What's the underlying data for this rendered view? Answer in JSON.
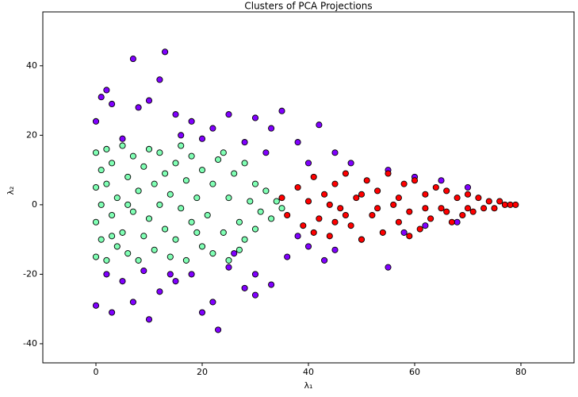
{
  "chart_data": {
    "type": "scatter",
    "title": "Clusters of PCA Projections",
    "xlabel": "λ₁",
    "ylabel": "λ₂",
    "xlim": [
      -10,
      90
    ],
    "ylim": [
      -45.5,
      55.5
    ],
    "xticks": [
      0,
      20,
      40,
      60,
      80
    ],
    "yticks": [
      -40,
      -20,
      0,
      20,
      40
    ],
    "edgecolor": "#000000",
    "series": [
      {
        "color": "#8000ff",
        "x": [
          7,
          13,
          12,
          10,
          2,
          1,
          3,
          8,
          15,
          18,
          22,
          25,
          30,
          33,
          35,
          38,
          42,
          45,
          48,
          55,
          60,
          65,
          70,
          28,
          20,
          5,
          0,
          16,
          32,
          40,
          10,
          23,
          20,
          3,
          0,
          7,
          12,
          15,
          18,
          25,
          28,
          30,
          33,
          36,
          40,
          45,
          50,
          55,
          58,
          62,
          68,
          2,
          5,
          22,
          14,
          38,
          43,
          30,
          9,
          26
        ],
        "y": [
          42,
          44,
          36,
          30,
          33,
          31,
          29,
          28,
          26,
          24,
          22,
          26,
          25,
          22,
          27,
          18,
          23,
          15,
          12,
          10,
          8,
          7,
          5,
          18,
          19,
          19,
          24,
          20,
          15,
          12,
          -33,
          -36,
          -31,
          -31,
          -29,
          -28,
          -25,
          -22,
          -20,
          -18,
          -24,
          -20,
          -23,
          -15,
          -12,
          -13,
          -10,
          -18,
          -8,
          -6,
          -5,
          -20,
          -22,
          -28,
          -20,
          -9,
          -16,
          -26,
          -19,
          -14
        ]
      },
      {
        "color": "#80ffb4",
        "x": [
          0,
          0,
          0,
          0,
          1,
          1,
          1,
          2,
          2,
          2,
          3,
          3,
          4,
          4,
          5,
          5,
          6,
          6,
          7,
          7,
          8,
          8,
          9,
          9,
          10,
          10,
          11,
          11,
          12,
          12,
          13,
          13,
          14,
          14,
          15,
          15,
          16,
          16,
          17,
          17,
          18,
          18,
          19,
          20,
          20,
          21,
          22,
          22,
          23,
          24,
          25,
          25,
          26,
          27,
          28,
          28,
          29,
          30,
          30,
          31,
          32,
          33,
          34,
          35,
          19,
          6,
          3,
          24,
          27
        ],
        "y": [
          15,
          5,
          -5,
          -15,
          10,
          -10,
          0,
          16,
          -16,
          6,
          -3,
          12,
          -12,
          2,
          17,
          -8,
          8,
          -14,
          -2,
          14,
          4,
          -16,
          -9,
          11,
          16,
          -4,
          6,
          -13,
          0,
          15,
          -7,
          9,
          -15,
          3,
          12,
          -10,
          -1,
          17,
          7,
          -16,
          -5,
          14,
          2,
          -12,
          10,
          -3,
          6,
          -14,
          13,
          -8,
          2,
          -16,
          9,
          -5,
          12,
          -10,
          1,
          6,
          -7,
          -2,
          4,
          -4,
          1,
          -1,
          -8,
          0,
          -9,
          15,
          -13
        ]
      },
      {
        "color": "#ff0000",
        "x": [
          35,
          36,
          38,
          39,
          40,
          41,
          42,
          43,
          44,
          45,
          46,
          47,
          48,
          49,
          50,
          51,
          52,
          53,
          54,
          55,
          56,
          57,
          58,
          59,
          60,
          61,
          62,
          63,
          64,
          65,
          66,
          67,
          68,
          69,
          70,
          71,
          72,
          73,
          74,
          75,
          76,
          77,
          78,
          79,
          44,
          50,
          57,
          62,
          66,
          53,
          47,
          59,
          41,
          45,
          70
        ],
        "y": [
          2,
          -3,
          5,
          -6,
          1,
          8,
          -4,
          3,
          -9,
          6,
          -1,
          9,
          -6,
          2,
          -10,
          7,
          -3,
          4,
          -8,
          9,
          0,
          -5,
          6,
          -2,
          7,
          -7,
          3,
          -4,
          5,
          -1,
          4,
          -5,
          2,
          -3,
          3,
          -2,
          2,
          -1,
          1,
          -1,
          1,
          0,
          0,
          0,
          0,
          3,
          2,
          -1,
          -2,
          -1,
          -3,
          -9,
          -8,
          -5,
          -1
        ]
      }
    ]
  }
}
